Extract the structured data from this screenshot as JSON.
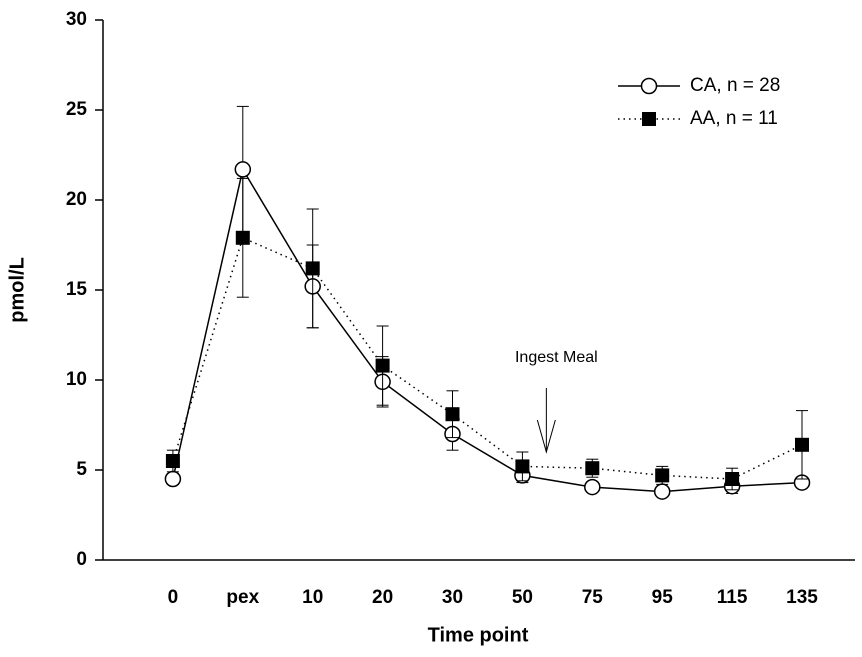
{
  "chart_data": {
    "type": "line",
    "categories": [
      "0",
      "pex",
      "10",
      "20",
      "30",
      "50",
      "75",
      "95",
      "115",
      "135"
    ],
    "series": [
      {
        "name": "CA, n = 28",
        "color": "#000000",
        "marker": "open-circle",
        "line": "solid",
        "values": [
          4.5,
          21.7,
          15.2,
          9.9,
          7.0,
          4.7,
          4.05,
          3.8,
          4.1,
          4.3
        ],
        "errors": [
          0.3,
          3.5,
          2.3,
          1.4,
          0.9,
          0.4,
          0.2,
          0.2,
          0.4,
          0.3
        ]
      },
      {
        "name": "AA, n = 11",
        "color": "#000000",
        "marker": "filled-square",
        "line": "dotted",
        "values": [
          5.5,
          17.9,
          16.2,
          10.8,
          8.1,
          5.2,
          5.1,
          4.7,
          4.5,
          6.4
        ],
        "errors": [
          0.6,
          3.3,
          3.3,
          2.2,
          1.3,
          0.8,
          0.5,
          0.5,
          0.6,
          1.9
        ]
      }
    ],
    "ylim": [
      0,
      30
    ],
    "yticks": [
      0,
      5,
      10,
      15,
      20,
      25,
      30
    ],
    "x_label": "Time point",
    "y_label": "pmol/L",
    "annotation": "Ingest Meal",
    "legend": "top-right"
  }
}
